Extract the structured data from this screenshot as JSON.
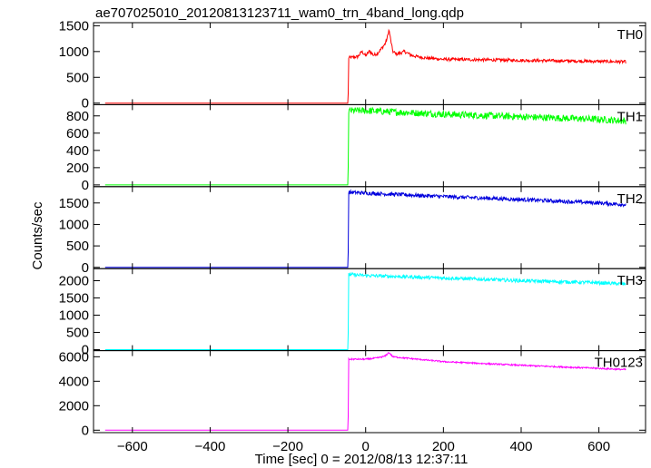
{
  "chart_data": {
    "type": "line",
    "title": "ae707025010_20120813123711_wam0_trn_4band_long.qdp",
    "xlabel": "Time [sec] 0 = 2012/08/13 12:37:11",
    "ylabel": "Counts/sec",
    "xlim": [
      -700,
      720
    ],
    "x_ticks": [
      -600,
      -400,
      -200,
      0,
      200,
      400,
      600
    ],
    "x_tick_labels": [
      "−600",
      "−400",
      "−200",
      "0",
      "200",
      "400",
      "600"
    ],
    "panels": [
      {
        "name": "TH0",
        "color": "#ff0000",
        "ylim": [
          -30,
          1560
        ],
        "y_ticks": [
          0,
          500,
          1000,
          1500
        ],
        "y_tick_labels": [
          "0",
          "500",
          "1000",
          "1500"
        ],
        "x": [
          -670,
          -45,
          -44,
          -20,
          -10,
          0,
          10,
          20,
          30,
          40,
          50,
          55,
          60,
          65,
          70,
          80,
          100,
          120,
          150,
          200,
          300,
          400,
          500,
          600,
          670
        ],
        "y": [
          0,
          0,
          880,
          900,
          1000,
          920,
          1010,
          930,
          960,
          1050,
          1150,
          1250,
          1420,
          1200,
          1000,
          950,
          1000,
          920,
          880,
          850,
          840,
          830,
          820,
          810,
          800
        ],
        "noise": 30
      },
      {
        "name": "TH1",
        "color": "#00ff00",
        "ylim": [
          -20,
          930
        ],
        "y_ticks": [
          0,
          200,
          400,
          600,
          800
        ],
        "y_tick_labels": [
          "0",
          "200",
          "400",
          "600",
          "800"
        ],
        "x": [
          -670,
          -45,
          -44,
          0,
          200,
          400,
          600,
          670
        ],
        "y": [
          0,
          0,
          860,
          860,
          820,
          790,
          760,
          740
        ],
        "noise": 40
      },
      {
        "name": "TH2",
        "color": "#0000dd",
        "ylim": [
          -30,
          1880
        ],
        "y_ticks": [
          0,
          500,
          1000,
          1500
        ],
        "y_tick_labels": [
          "0",
          "500",
          "1000",
          "1500"
        ],
        "x": [
          -670,
          -45,
          -44,
          0,
          200,
          400,
          600,
          670
        ],
        "y": [
          0,
          0,
          1750,
          1730,
          1650,
          1580,
          1500,
          1460
        ],
        "noise": 45
      },
      {
        "name": "TH3",
        "color": "#00ffff",
        "ylim": [
          -30,
          2350
        ],
        "y_ticks": [
          0,
          500,
          1000,
          1500,
          2000
        ],
        "y_tick_labels": [
          "0",
          "500",
          "1000",
          "1500",
          "2000"
        ],
        "x": [
          -670,
          -45,
          -44,
          0,
          200,
          400,
          600,
          670
        ],
        "y": [
          0,
          0,
          2180,
          2150,
          2080,
          2000,
          1940,
          1900
        ],
        "noise": 50
      },
      {
        "name": "TH0123",
        "color": "#ff00ff",
        "ylim": [
          -200,
          6500
        ],
        "y_ticks": [
          0,
          2000,
          4000,
          6000
        ],
        "y_tick_labels": [
          "0",
          "2000",
          "4000",
          "6000"
        ],
        "x": [
          -670,
          -45,
          -44,
          0,
          30,
          50,
          60,
          70,
          100,
          200,
          400,
          600,
          670
        ],
        "y": [
          0,
          0,
          5800,
          5800,
          5900,
          6050,
          6350,
          6000,
          5900,
          5600,
          5300,
          5050,
          4950
        ],
        "noise": 60
      }
    ]
  }
}
